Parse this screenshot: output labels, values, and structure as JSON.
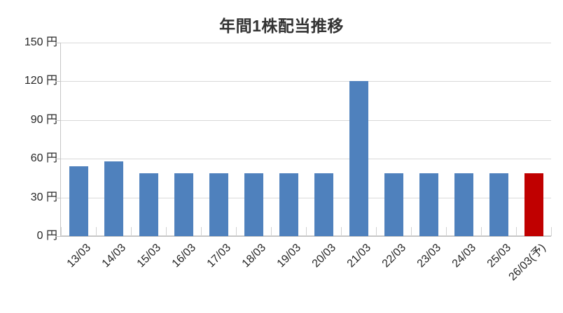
{
  "chart_data": {
    "type": "bar",
    "title": "年間1株配当推移",
    "categories": [
      "13/03",
      "14/03",
      "15/03",
      "16/03",
      "17/03",
      "18/03",
      "19/03",
      "20/03",
      "21/03",
      "22/03",
      "23/03",
      "24/03",
      "25/03",
      "26/03(予)"
    ],
    "values": [
      54,
      58,
      49,
      49,
      49,
      49,
      49,
      49,
      120,
      49,
      49,
      49,
      49,
      49
    ],
    "unit": "円",
    "forecast_index": 13,
    "forecast_label": "26/03(予)",
    "y_tick_labels": [
      "150 円",
      "120 円",
      "90 円",
      "60 円",
      "30 円",
      "0 円"
    ],
    "y_tick_values": [
      150,
      120,
      90,
      60,
      30,
      0
    ],
    "ylim": [
      0,
      150
    ],
    "grid": true,
    "legend": "none",
    "xlabel": "",
    "ylabel": "",
    "colors": {
      "bar": "#4F81BD",
      "forecast_bar": "#C00000",
      "gridline": "#D9D9D9",
      "axis_line": "#C6C6C6",
      "tick": "#D2D2D2",
      "label_text": "#262626",
      "title_text": "#333333",
      "background": "#FFFFFF"
    }
  }
}
